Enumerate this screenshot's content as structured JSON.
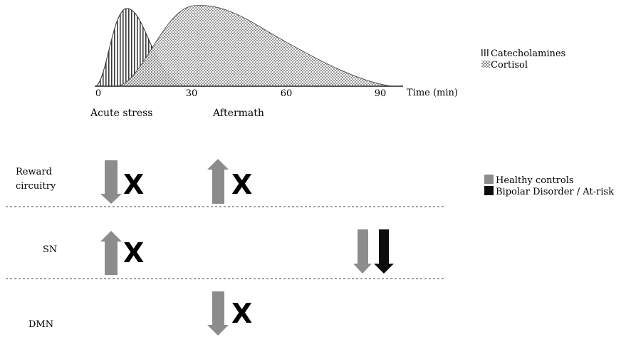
{
  "timeline": {
    "ticks": [
      "0",
      "30",
      "60",
      "90"
    ],
    "axis_label": "Time (min)",
    "phase_labels": [
      "Acute stress",
      "Aftermath"
    ]
  },
  "hormone_legend": {
    "catecholamines": "Catecholamines",
    "cortisol": "Cortisol"
  },
  "group_legend": {
    "healthy": "Healthy controls",
    "bipolar": "Bipolar Disorder / At-risk"
  },
  "networks": [
    {
      "label_lines": [
        "Reward",
        "circuitry"
      ]
    },
    {
      "label_lines": [
        "SN"
      ]
    },
    {
      "label_lines": [
        "DMN"
      ]
    }
  ],
  "cross_symbol": "X",
  "colors": {
    "healthy": "#8c8c8c",
    "bipolar": "#0d0d0d",
    "curve_line": "#333333"
  }
}
